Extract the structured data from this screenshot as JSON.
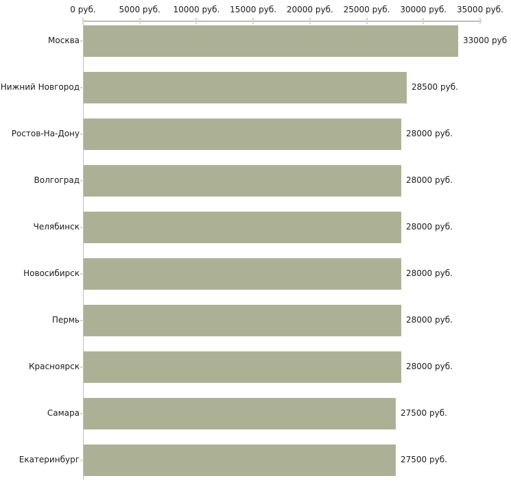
{
  "chart_data": {
    "type": "bar",
    "orientation": "horizontal",
    "title": "",
    "xlabel": "",
    "ylabel": "",
    "categories": [
      "Москва",
      "Нижний Новгород",
      "Ростов-На-Дону",
      "Волгоград",
      "Челябинск",
      "Новосибирск",
      "Пермь",
      "Красноярск",
      "Самара",
      "Екатеринбург"
    ],
    "values": [
      33000,
      28500,
      28000,
      28000,
      28000,
      28000,
      28000,
      28000,
      27500,
      27500
    ],
    "value_labels": [
      "33000 руб",
      "28500 руб.",
      "28000 руб.",
      "28000 руб.",
      "28000 руб.",
      "28000 руб.",
      "28000 руб.",
      "28000 руб.",
      "27500 руб.",
      "27500 руб."
    ],
    "x_axis": {
      "position": "top",
      "min": 0,
      "max": 35000,
      "tick_values": [
        0,
        5000,
        10000,
        15000,
        20000,
        25000,
        30000,
        35000
      ],
      "tick_labels": [
        "0 руб.",
        "5000 руб.",
        "10000 руб.",
        "15000 руб.",
        "20000 руб.",
        "25000 руб.",
        "30000 руб.",
        "35000 руб."
      ]
    },
    "grid": false,
    "legend": false,
    "colors": {
      "bar": "#acb196",
      "axis_line": "#bcbcbc",
      "tick_mark": "#d8d8bc",
      "text": "#1a1a1a",
      "background": "#ffffff"
    }
  }
}
